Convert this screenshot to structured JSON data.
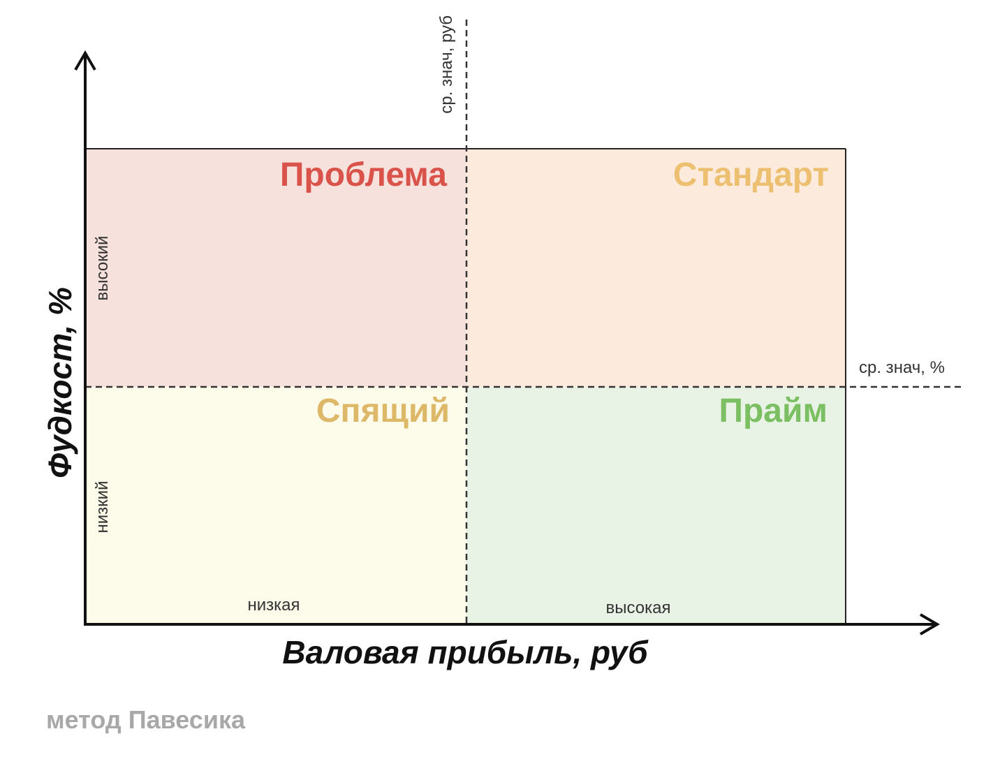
{
  "quadrants": {
    "top_left": {
      "label": "Проблема",
      "fill": "#f7e1dd",
      "text_color": "#d9534a"
    },
    "top_right": {
      "label": "Стандарт",
      "fill": "#fcebdc",
      "text_color": "#ecc070"
    },
    "bottom_left": {
      "label": "Спящий",
      "fill": "#fdfbe9",
      "text_color": "#dcb868"
    },
    "bottom_right": {
      "label": "Прайм",
      "fill": "#e8f2e5",
      "text_color": "#7cbf62"
    }
  },
  "axes": {
    "y_title": "Фудкост, %",
    "x_title": "Валовая прибыль, руб",
    "y_high": "высокий",
    "y_low": "низкий",
    "x_low": "низкая",
    "x_high": "высокая"
  },
  "dividers": {
    "vertical_label": "ср. знач, руб",
    "horizontal_label": "ср. знач, %"
  },
  "footer": "метод Павесика",
  "colors": {
    "axis": "#111111",
    "divider": "#333333"
  }
}
